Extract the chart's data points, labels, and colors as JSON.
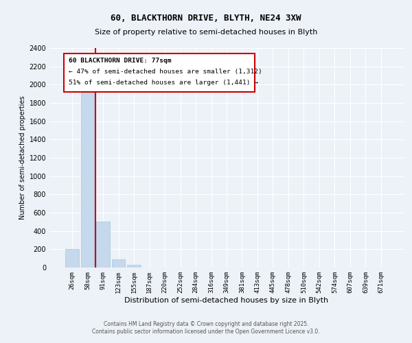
{
  "title1": "60, BLACKTHORN DRIVE, BLYTH, NE24 3XW",
  "title2": "Size of property relative to semi-detached houses in Blyth",
  "xlabel": "Distribution of semi-detached houses by size in Blyth",
  "ylabel": "Number of semi-detached properties",
  "bar_color": "#c5d8ec",
  "bar_edge_color": "#a8c8e0",
  "categories": [
    "26sqm",
    "58sqm",
    "91sqm",
    "123sqm",
    "155sqm",
    "187sqm",
    "220sqm",
    "252sqm",
    "284sqm",
    "316sqm",
    "349sqm",
    "381sqm",
    "413sqm",
    "445sqm",
    "478sqm",
    "510sqm",
    "542sqm",
    "574sqm",
    "607sqm",
    "639sqm",
    "671sqm"
  ],
  "values": [
    200,
    2000,
    500,
    90,
    30,
    0,
    0,
    0,
    0,
    0,
    0,
    0,
    0,
    0,
    0,
    0,
    0,
    0,
    0,
    0,
    0
  ],
  "vline_index": 2,
  "annotation_line1": "60 BLACKTHORN DRIVE: 77sqm",
  "annotation_line2": "← 47% of semi-detached houses are smaller (1,312)",
  "annotation_line3": "51% of semi-detached houses are larger (1,441) →",
  "vline_color": "#cc0000",
  "box_edge_color": "#cc0000",
  "ylim": [
    0,
    2400
  ],
  "yticks": [
    0,
    200,
    400,
    600,
    800,
    1000,
    1200,
    1400,
    1600,
    1800,
    2000,
    2200,
    2400
  ],
  "footer1": "Contains HM Land Registry data © Crown copyright and database right 2025.",
  "footer2": "Contains public sector information licensed under the Open Government Licence v3.0.",
  "bg_color": "#edf2f8",
  "plot_bg_color": "#edf2f8",
  "grid_color": "#ffffff",
  "title1_fontsize": 9,
  "title2_fontsize": 8
}
